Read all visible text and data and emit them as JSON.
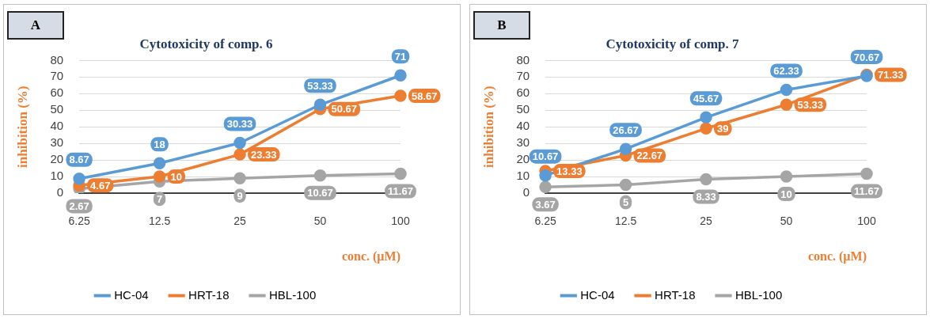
{
  "chart_data": [
    {
      "type": "line",
      "title": "Cytotoxicity of comp. 6",
      "annotations": [
        "A"
      ],
      "xlabel": "conc. (µM)",
      "ylabel": "inhibition (%)",
      "categories": [
        "6.25",
        "12.5",
        "25",
        "50",
        "100"
      ],
      "ylim": [
        0,
        80
      ],
      "yticks": [
        0,
        10,
        20,
        30,
        40,
        50,
        60,
        70,
        80
      ],
      "grid": "y",
      "legend": "bottom",
      "marker": "circle",
      "data_labels": true,
      "series": [
        {
          "name": "HC-04",
          "color": "#5b9bd5",
          "values": [
            8.67,
            18,
            30.33,
            53.33,
            71
          ]
        },
        {
          "name": "HRT-18",
          "color": "#ed7d31",
          "values": [
            4.67,
            10,
            23.33,
            50.67,
            58.67
          ]
        },
        {
          "name": "HBL-100",
          "color": "#a5a5a5",
          "values": [
            2.67,
            7,
            9,
            10.67,
            11.67
          ]
        }
      ]
    },
    {
      "type": "line",
      "title": "Cytotoxicity of comp. 7",
      "annotations": [
        "B"
      ],
      "xlabel": "conc. (µM)",
      "ylabel": "inhibition (%)",
      "categories": [
        "6.25",
        "12.5",
        "25",
        "50",
        "100"
      ],
      "ylim": [
        0,
        80
      ],
      "yticks": [
        0,
        10,
        20,
        30,
        40,
        50,
        60,
        70,
        80
      ],
      "grid": "y",
      "legend": "bottom",
      "marker": "circle",
      "data_labels": true,
      "series": [
        {
          "name": "HC-04",
          "color": "#5b9bd5",
          "values": [
            10.67,
            26.67,
            45.67,
            62.33,
            70.67
          ]
        },
        {
          "name": "HRT-18",
          "color": "#ed7d31",
          "values": [
            13.33,
            22.67,
            39,
            53.33,
            71.33
          ]
        },
        {
          "name": "HBL-100",
          "color": "#a5a5a5",
          "values": [
            3.67,
            5,
            8.33,
            10,
            11.67
          ]
        }
      ]
    }
  ]
}
